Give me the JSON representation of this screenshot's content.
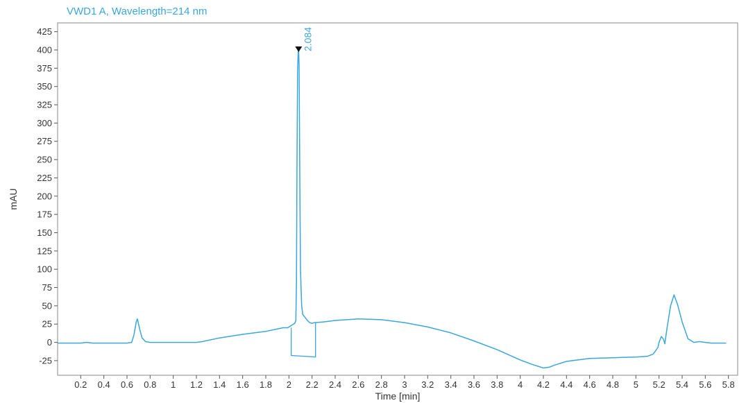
{
  "chart_data": {
    "type": "line",
    "title": "VWD1 A, Wavelength=214 nm",
    "xlabel": "Time [min]",
    "ylabel": "mAU",
    "xlim": [
      0,
      5.88
    ],
    "ylim": [
      -45,
      437
    ],
    "x_ticks": [
      0.2,
      0.4,
      0.6,
      0.8,
      1,
      1.2,
      1.4,
      1.6,
      1.8,
      2,
      2.2,
      2.4,
      2.6,
      2.8,
      3,
      3.2,
      3.4,
      3.6,
      3.8,
      4,
      4.2,
      4.4,
      4.6,
      4.8,
      5,
      5.2,
      5.4,
      5.6,
      5.8
    ],
    "x_tick_labels": [
      "0.2",
      "0.4",
      "0.6",
      "0.8",
      "1",
      "1.2",
      "1.4",
      "1.6",
      "1.8",
      "2",
      "2.2",
      "2.4",
      "2.6",
      "2.8",
      "3",
      "3.2",
      "3.4",
      "3.6",
      "3.8",
      "4",
      "4.2",
      "4.4",
      "4.6",
      "4.8",
      "5",
      "5.2",
      "5.4",
      "5.6",
      "5.8"
    ],
    "y_ticks": [
      -25,
      0,
      25,
      50,
      75,
      100,
      125,
      150,
      175,
      200,
      225,
      250,
      275,
      300,
      325,
      350,
      375,
      400,
      425
    ],
    "y_tick_labels": [
      "-25",
      "0",
      "25",
      "50",
      "75",
      "100",
      "125",
      "150",
      "175",
      "200",
      "225",
      "250",
      "275",
      "300",
      "325",
      "350",
      "375",
      "400",
      "425"
    ],
    "grid": false,
    "color": "#3aa6dd",
    "series": [
      {
        "x": [
          0,
          0.2,
          0.25,
          0.3,
          0.6,
          0.64,
          0.66,
          0.68,
          0.69,
          0.71,
          0.73,
          0.76,
          0.8,
          1.0,
          1.2,
          1.25,
          1.4,
          1.6,
          1.8,
          1.95,
          1.99,
          2.01,
          2.02,
          2.03,
          2.04,
          2.05,
          2.06,
          2.065,
          2.07,
          2.075,
          2.08,
          2.084,
          2.088,
          2.095,
          2.1,
          2.11,
          2.12,
          2.14,
          2.16,
          2.18,
          2.2,
          2.22,
          2.3,
          2.4,
          2.6,
          2.8,
          3.0,
          3.2,
          3.4,
          3.6,
          3.8,
          4.0,
          4.1,
          4.2,
          4.25,
          4.3,
          4.4,
          4.6,
          4.8,
          5.0,
          5.1,
          5.15,
          5.19,
          5.2,
          5.22,
          5.24,
          5.25,
          5.27,
          5.3,
          5.33,
          5.36,
          5.4,
          5.45,
          5.5,
          5.55,
          5.6,
          5.65,
          5.7,
          5.75,
          5.78
        ],
        "y": [
          -1,
          -1,
          0,
          -1,
          -1,
          0,
          10,
          28,
          32,
          18,
          6,
          1,
          0,
          0,
          0,
          1,
          6,
          11,
          15,
          20,
          20,
          22,
          23,
          24,
          25,
          26,
          30,
          80,
          250,
          370,
          398,
          400,
          380,
          200,
          100,
          50,
          38,
          34,
          30,
          27,
          26,
          27,
          28,
          30,
          32,
          31,
          27,
          21,
          13,
          2,
          -10,
          -24,
          -30,
          -35,
          -34,
          -31,
          -26,
          -22,
          -21,
          -20,
          -19,
          -16,
          -7,
          0,
          8,
          4,
          -2,
          20,
          50,
          65,
          52,
          28,
          5,
          0,
          1,
          0,
          -1,
          -1,
          -1,
          -1
        ]
      }
    ],
    "annotations": [
      {
        "x": 2.084,
        "y": 400,
        "text": "2.084",
        "marker": "triangle-down"
      }
    ],
    "baseline_segments": [
      {
        "x": [
          2.02,
          2.02,
          2.23,
          2.23
        ],
        "y": [
          20,
          -18,
          -20,
          27
        ]
      }
    ]
  }
}
